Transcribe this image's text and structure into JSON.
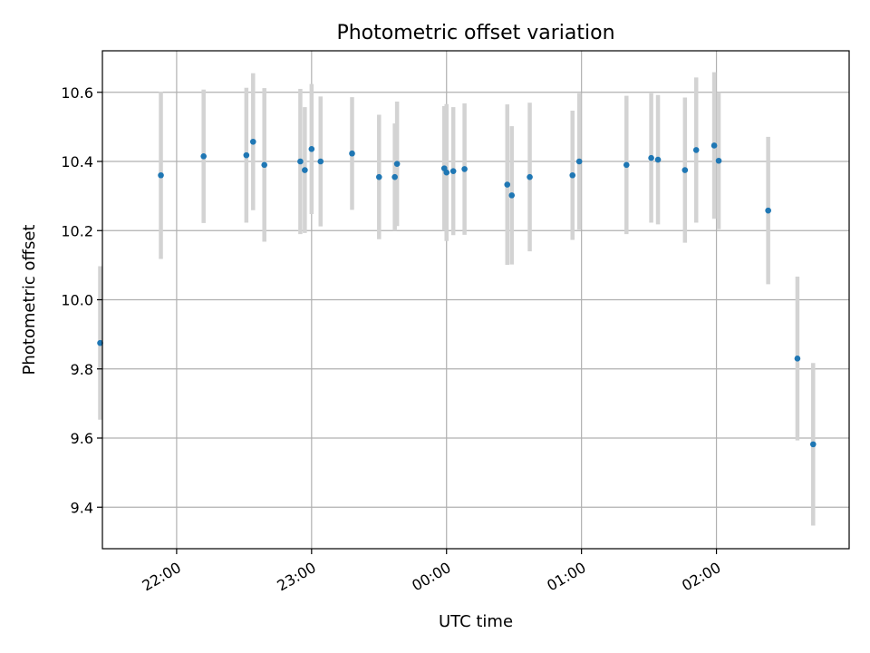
{
  "chart_data": {
    "type": "scatter",
    "title": "Photometric offset variation",
    "xlabel": "UTC time",
    "ylabel": "Photometric offset",
    "x_unit": "minutes_from_midnight_utc",
    "xlim": [
      "21:27",
      "02:59"
    ],
    "ylim": [
      9.28,
      10.72
    ],
    "x_ticks": [
      "22:00",
      "23:00",
      "00:00",
      "01:00",
      "02:00"
    ],
    "y_ticks": [
      9.4,
      9.6,
      9.8,
      10.0,
      10.2,
      10.4,
      10.6
    ],
    "grid": true,
    "colors": {
      "point": "#1f77b4",
      "errorbar": "#d3d3d3"
    },
    "points": [
      {
        "x": "21:26",
        "y": 9.875,
        "yerr": 0.222
      },
      {
        "x": "21:53",
        "y": 10.36,
        "yerr": 0.242
      },
      {
        "x": "22:12",
        "y": 10.415,
        "yerr": 0.193
      },
      {
        "x": "22:31",
        "y": 10.418,
        "yerr": 0.195
      },
      {
        "x": "22:34",
        "y": 10.457,
        "yerr": 0.198
      },
      {
        "x": "22:39",
        "y": 10.39,
        "yerr": 0.222
      },
      {
        "x": "22:55",
        "y": 10.4,
        "yerr": 0.21
      },
      {
        "x": "22:57",
        "y": 10.375,
        "yerr": 0.182
      },
      {
        "x": "23:00",
        "y": 10.436,
        "yerr": 0.188
      },
      {
        "x": "23:04",
        "y": 10.4,
        "yerr": 0.188
      },
      {
        "x": "23:18",
        "y": 10.423,
        "yerr": 0.163
      },
      {
        "x": "23:30",
        "y": 10.355,
        "yerr": 0.18
      },
      {
        "x": "23:37",
        "y": 10.355,
        "yerr": 0.155
      },
      {
        "x": "23:38",
        "y": 10.393,
        "yerr": 0.18
      },
      {
        "x": "23:59",
        "y": 10.38,
        "yerr": 0.18
      },
      {
        "x": "00:00",
        "y": 10.368,
        "yerr": 0.198
      },
      {
        "x": "00:03",
        "y": 10.372,
        "yerr": 0.185
      },
      {
        "x": "00:08",
        "y": 10.378,
        "yerr": 0.19
      },
      {
        "x": "00:27",
        "y": 10.333,
        "yerr": 0.232
      },
      {
        "x": "00:29",
        "y": 10.302,
        "yerr": 0.2
      },
      {
        "x": "00:37",
        "y": 10.355,
        "yerr": 0.215
      },
      {
        "x": "00:56",
        "y": 10.36,
        "yerr": 0.187
      },
      {
        "x": "00:59",
        "y": 10.4,
        "yerr": 0.197
      },
      {
        "x": "01:20",
        "y": 10.39,
        "yerr": 0.2
      },
      {
        "x": "01:31",
        "y": 10.41,
        "yerr": 0.187
      },
      {
        "x": "01:34",
        "y": 10.405,
        "yerr": 0.187
      },
      {
        "x": "01:46",
        "y": 10.375,
        "yerr": 0.21
      },
      {
        "x": "01:51",
        "y": 10.433,
        "yerr": 0.21
      },
      {
        "x": "01:59",
        "y": 10.446,
        "yerr": 0.212
      },
      {
        "x": "02:01",
        "y": 10.402,
        "yerr": 0.198
      },
      {
        "x": "02:23",
        "y": 10.258,
        "yerr": 0.213
      },
      {
        "x": "02:36",
        "y": 9.83,
        "yerr": 0.237
      },
      {
        "x": "02:43",
        "y": 9.582,
        "yerr": 0.235
      }
    ]
  }
}
